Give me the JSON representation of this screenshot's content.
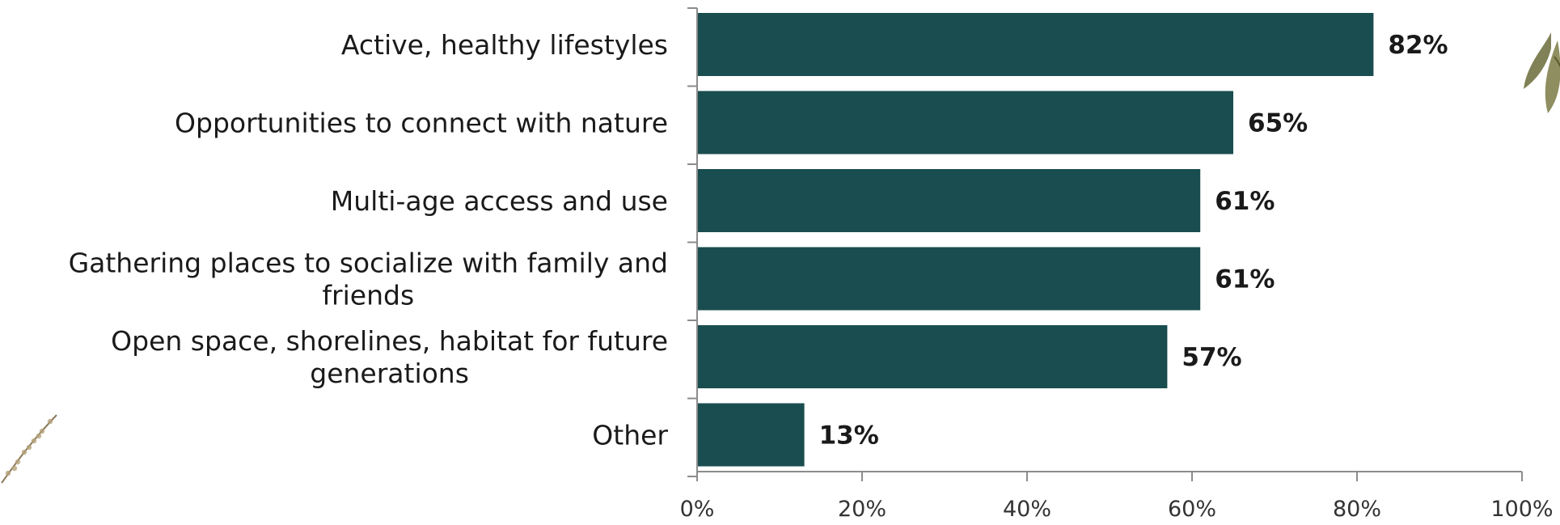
{
  "chart_data": {
    "type": "bar",
    "orientation": "horizontal",
    "categories": [
      [
        "Active, healthy lifestyles"
      ],
      [
        "Opportunities to connect with nature"
      ],
      [
        "Multi-age access and use"
      ],
      [
        "Gathering places to socialize with family and",
        "friends"
      ],
      [
        "Open space, shorelines, habitat for future",
        "generations"
      ],
      [
        "Other"
      ]
    ],
    "values": [
      82,
      65,
      61,
      61,
      57,
      13
    ],
    "value_labels": [
      "82%",
      "65%",
      "61%",
      "61%",
      "57%",
      "13%"
    ],
    "xlim": [
      0,
      100
    ],
    "xticks": [
      0,
      20,
      40,
      60,
      80,
      100
    ],
    "xtick_labels": [
      "0%",
      "20%",
      "40%",
      "60%",
      "80%",
      "100%"
    ],
    "title": "",
    "xlabel": "",
    "ylabel": "",
    "grid": false,
    "legend": "none",
    "colors": {
      "bar": "#1a4d4f",
      "axis": "#8c8c8c",
      "text": "#1a1a1a",
      "decoration": "#6b6b3a"
    }
  },
  "decorations": [
    {
      "icon": "leaf-sprig-icon",
      "position": "top-right"
    },
    {
      "icon": "blossom-branch-icon",
      "position": "bottom-left"
    }
  ]
}
